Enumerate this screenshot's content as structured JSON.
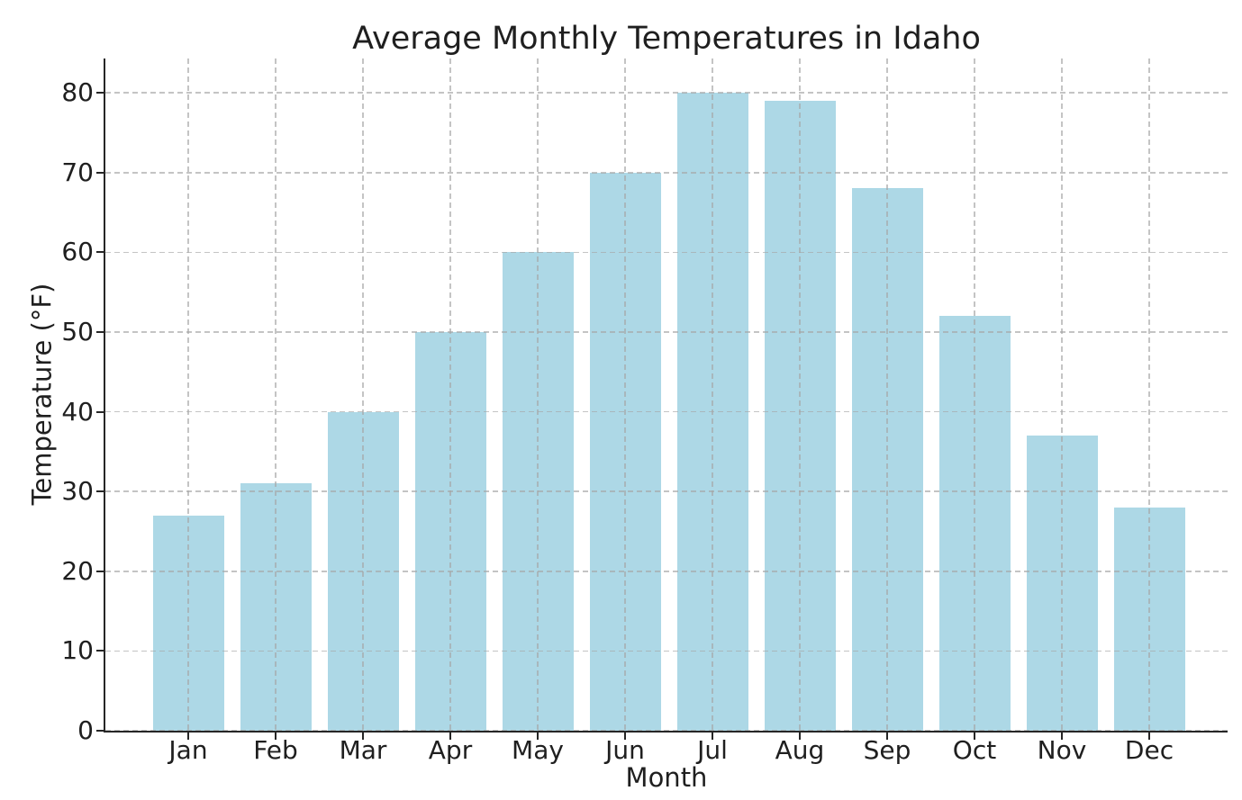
{
  "title": "Average Monthly Temperatures in Idaho",
  "chart_data": {
    "type": "bar",
    "title": "Average Monthly Temperatures in Idaho",
    "xlabel": "Month",
    "ylabel": "Temperature (°F)",
    "categories": [
      "Jan",
      "Feb",
      "Mar",
      "Apr",
      "May",
      "Jun",
      "Jul",
      "Aug",
      "Sep",
      "Oct",
      "Nov",
      "Dec"
    ],
    "values": [
      27,
      31,
      40,
      50,
      60,
      70,
      80,
      79,
      68,
      52,
      37,
      28
    ],
    "yticks": [
      0,
      10,
      20,
      30,
      40,
      50,
      60,
      70,
      80
    ],
    "ylim": [
      0,
      84.3
    ],
    "bar_color": "#ADD8E6",
    "spine_color": "#262626",
    "grid": "dashed gray, horizontal and vertical, drawn over bars",
    "legend_position": "none",
    "background_color": "#ffffff"
  }
}
